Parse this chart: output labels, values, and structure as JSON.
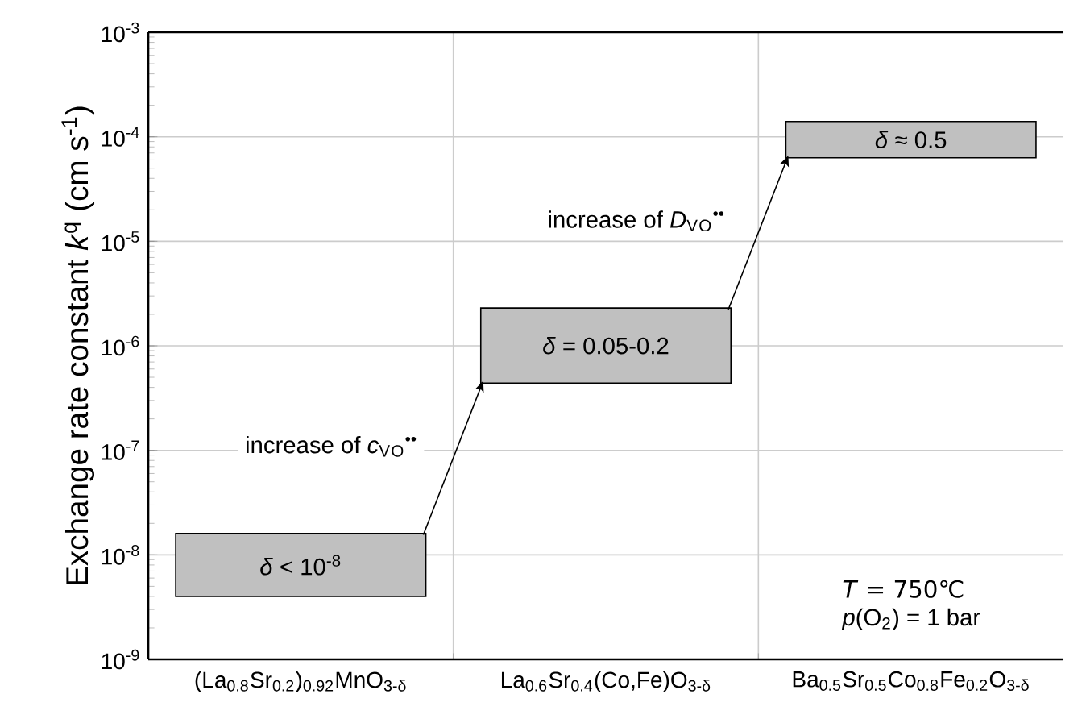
{
  "chart_data": {
    "type": "bar",
    "ylabel": "Exchange rate constant *k*$^{q}$ (cm s$^{-1}$)",
    "categories": [
      "(La$_{0.8}$Sr$_{0.2}$)$_{0.92}$MnO$_{3-δ}$",
      "La$_{0.6}$Sr$_{0.4}$(Co,Fe)O$_{3-δ}$",
      "Ba$_{0.5}$Sr$_{0.5}$Co$_{0.8}$Fe$_{0.2}$O$_{3-δ}$"
    ],
    "series": [
      {
        "color": "#c0c0c0",
        "values": [
          1.2e-08,
          1.86e-06,
          7.7e-05
        ],
        "base": [
          4e-09,
          4.4e-07,
          6.3e-05
        ]
      }
    ],
    "log": "y",
    "ylim": [
      1e-09,
      0.001
    ],
    "yticks": [
      {
        "value": 1e-09,
        "label": "10$^{-9}$"
      },
      {
        "value": 1e-08,
        "label": "10$^{-8}$"
      },
      {
        "value": 1e-07,
        "label": "10$^{-7}$"
      },
      {
        "value": 1e-06,
        "label": "10$^{-6}$"
      },
      {
        "value": 1e-05,
        "label": "10$^{-5}$"
      },
      {
        "value": 0.0001,
        "label": "10$^{-4}$"
      },
      {
        "value": 0.001,
        "label": "10$^{-3}$"
      }
    ],
    "grid": true,
    "annotations": [
      "*δ* < 10$^{-8}$",
      "*δ* = 0.05-0.2",
      "*δ* ≈ 0.5",
      "increase of *c*$_{V}$$_{O}$$^{••}$",
      "increase of *D*$_{V}$$_{O}$$^{••}$",
      "*T* = 750℃",
      "*p*(O$_{2}$) = 1 bar"
    ]
  }
}
